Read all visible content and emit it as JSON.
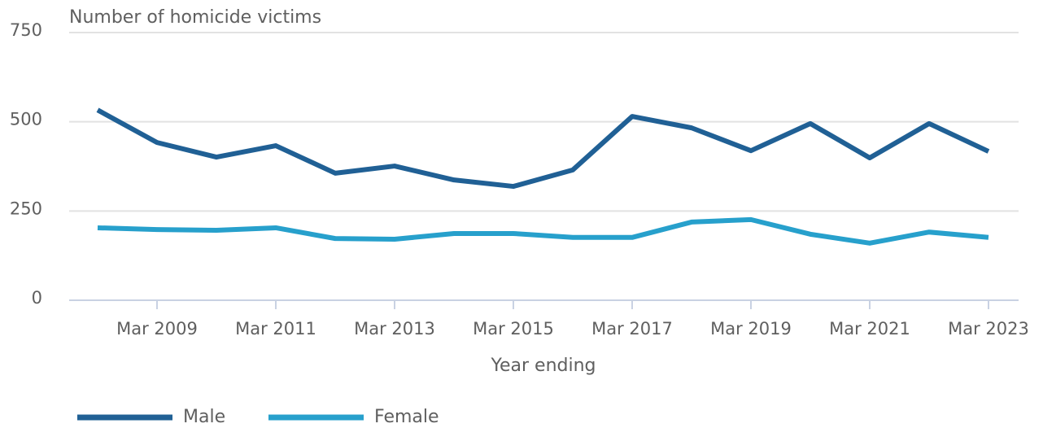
{
  "chart_data": {
    "type": "line",
    "title": "Number of homicide victims",
    "x_label": "Year ending",
    "categories": [
      null,
      "Mar 2009",
      null,
      "Mar 2011",
      null,
      "Mar 2013",
      null,
      "Mar 2015",
      null,
      "Mar 2017",
      null,
      "Mar 2019",
      null,
      "Mar 2021",
      null,
      "Mar 2023"
    ],
    "series": [
      {
        "name": "Male",
        "color": "#206095",
        "values": [
          533,
          442,
          401,
          433,
          356,
          376,
          337,
          319,
          365,
          515,
          483,
          419,
          495,
          399,
          495,
          417
        ]
      },
      {
        "name": "Female",
        "color": "#27a0cc",
        "values": [
          203,
          198,
          196,
          203,
          173,
          171,
          187,
          187,
          176,
          176,
          219,
          226,
          185,
          160,
          191,
          176
        ]
      }
    ],
    "ylim": [
      0,
      750
    ],
    "yticks": [
      0,
      250,
      500,
      750
    ],
    "grid": true,
    "legend": "bottom"
  }
}
